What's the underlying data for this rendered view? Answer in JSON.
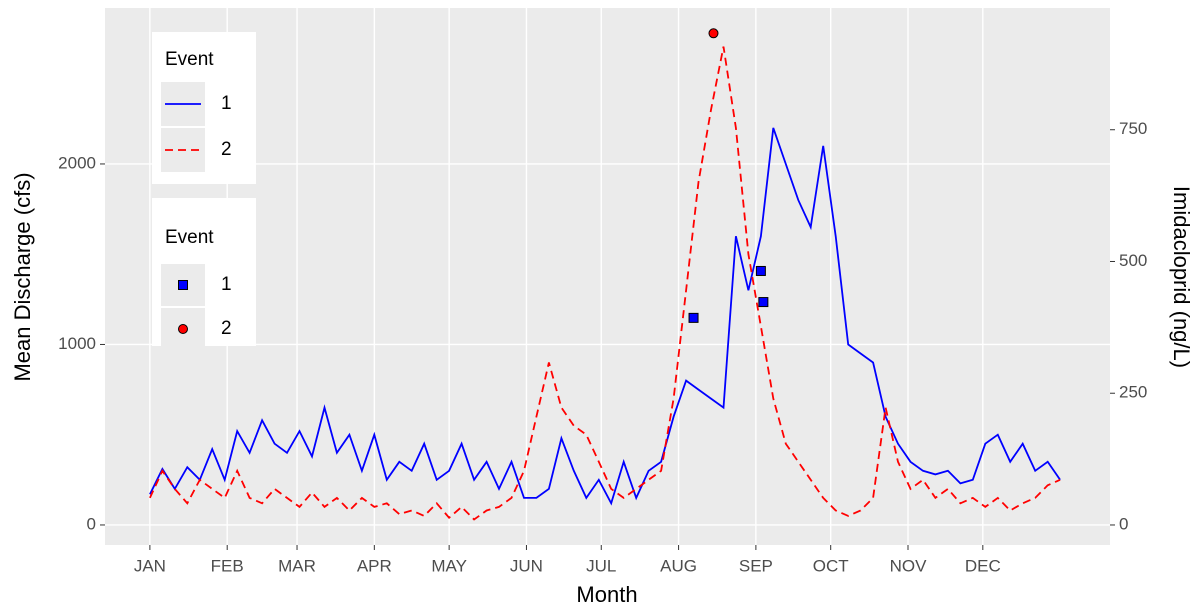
{
  "chart_data": {
    "type": "line",
    "xlabel": "Month",
    "ylabel": "Mean Discharge (cfs)",
    "y2label": "Imidacloprid (ng/L)",
    "legend_titles": [
      "Event",
      "Event"
    ],
    "xlim": [
      -17,
      386
    ],
    "ylim": [
      -111,
      2864
    ],
    "y2lim": [
      -38,
      981
    ],
    "xticks": [
      {
        "value": 1,
        "label": "JAN"
      },
      {
        "value": 32,
        "label": "FEB"
      },
      {
        "value": 60,
        "label": "MAR"
      },
      {
        "value": 91,
        "label": "APR"
      },
      {
        "value": 121,
        "label": "MAY"
      },
      {
        "value": 152,
        "label": "JUN"
      },
      {
        "value": 182,
        "label": "JUL"
      },
      {
        "value": 213,
        "label": "AUG"
      },
      {
        "value": 244,
        "label": "SEP"
      },
      {
        "value": 274,
        "label": "OCT"
      },
      {
        "value": 305,
        "label": "NOV"
      },
      {
        "value": 335,
        "label": "DEC"
      }
    ],
    "yticks": [
      0,
      1000,
      2000
    ],
    "y2ticks": [
      0,
      250,
      500,
      750
    ],
    "grid": true,
    "x": [
      1,
      6,
      11,
      16,
      21,
      26,
      31,
      36,
      41,
      46,
      51,
      56,
      61,
      66,
      71,
      76,
      81,
      86,
      91,
      96,
      101,
      106,
      111,
      116,
      121,
      126,
      131,
      136,
      141,
      146,
      151,
      156,
      161,
      166,
      171,
      176,
      181,
      186,
      191,
      196,
      201,
      206,
      211,
      216,
      221,
      226,
      231,
      236,
      241,
      246,
      251,
      256,
      261,
      266,
      271,
      276,
      281,
      286,
      291,
      296,
      301,
      306,
      311,
      316,
      321,
      326,
      331,
      336,
      341,
      346,
      351,
      356,
      361,
      366
    ],
    "series": [
      {
        "name": "1",
        "color": "#0000ff",
        "dash": "solid",
        "values": [
          170,
          310,
          200,
          320,
          250,
          420,
          250,
          520,
          400,
          580,
          450,
          400,
          520,
          380,
          650,
          400,
          500,
          300,
          500,
          250,
          350,
          300,
          450,
          250,
          300,
          450,
          250,
          350,
          200,
          350,
          150,
          150,
          200,
          480,
          300,
          150,
          250,
          120,
          350,
          150,
          300,
          350,
          600,
          800,
          750,
          700,
          650,
          1600,
          1300,
          1600,
          2200,
          2000,
          1800,
          1650,
          2100,
          1600,
          1000,
          950,
          900,
          600,
          450,
          350,
          300,
          280,
          300,
          230,
          250,
          450,
          500,
          350,
          450,
          300,
          350,
          250
        ]
      },
      {
        "name": "2",
        "color": "#ff0000",
        "dash": "dashed",
        "values": [
          150,
          300,
          200,
          120,
          250,
          200,
          150,
          300,
          150,
          120,
          200,
          150,
          100,
          180,
          100,
          150,
          80,
          150,
          100,
          120,
          60,
          80,
          50,
          120,
          40,
          100,
          30,
          80,
          100,
          150,
          300,
          600,
          900,
          650,
          550,
          500,
          350,
          200,
          150,
          200,
          250,
          300,
          700,
          1300,
          1900,
          2300,
          2650,
          2200,
          1500,
          1100,
          700,
          450,
          350,
          250,
          150,
          80,
          50,
          80,
          150,
          650,
          350,
          200,
          250,
          150,
          200,
          120,
          150,
          100,
          150,
          80,
          120,
          150,
          220,
          250
        ]
      },
      {
        "name": "1",
        "color": "#0000ff",
        "marker": "square",
        "axis": "y2",
        "x": [
          219,
          246,
          247
        ],
        "values": [
          393,
          482,
          423
        ]
      },
      {
        "name": "2",
        "color": "#ff0000",
        "marker": "circle",
        "axis": "y2",
        "x": [
          227
        ],
        "values": [
          933
        ]
      }
    ]
  }
}
